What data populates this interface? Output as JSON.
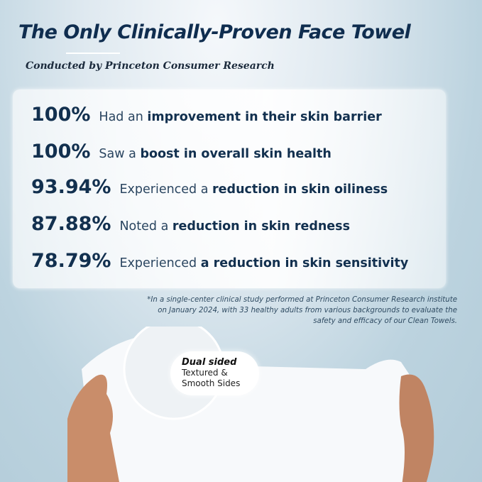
{
  "header": {
    "title": "The Only Clinically-Proven Face Towel",
    "subtitle": "Conducted by Princeton Consumer Research"
  },
  "stats": [
    {
      "percent": "100%",
      "pre": "Had an",
      "bold": "improvement in their skin barrier"
    },
    {
      "percent": "100%",
      "pre": "Saw a",
      "bold": "boost in overall skin health"
    },
    {
      "percent": "93.94%",
      "pre": "Experienced a",
      "bold": "reduction in skin oiliness"
    },
    {
      "percent": "87.88%",
      "pre": "Noted a",
      "bold": "reduction in skin redness"
    },
    {
      "percent": "78.79%",
      "pre": "Experienced",
      "bold": "a reduction in skin sensitivity"
    }
  ],
  "footnote": "*In a single-center clinical study performed at Princeton Consumer Research institute on January 2024, with 33 healthy adults from various backgrounds to evaluate the safety and efficacy of our Clean Towels.",
  "badge": {
    "title": "Dual sided",
    "line1": "Textured &",
    "line2": "Smooth Sides"
  },
  "colors": {
    "navy": "#0f2d4f",
    "background": "#b3ccd9"
  }
}
